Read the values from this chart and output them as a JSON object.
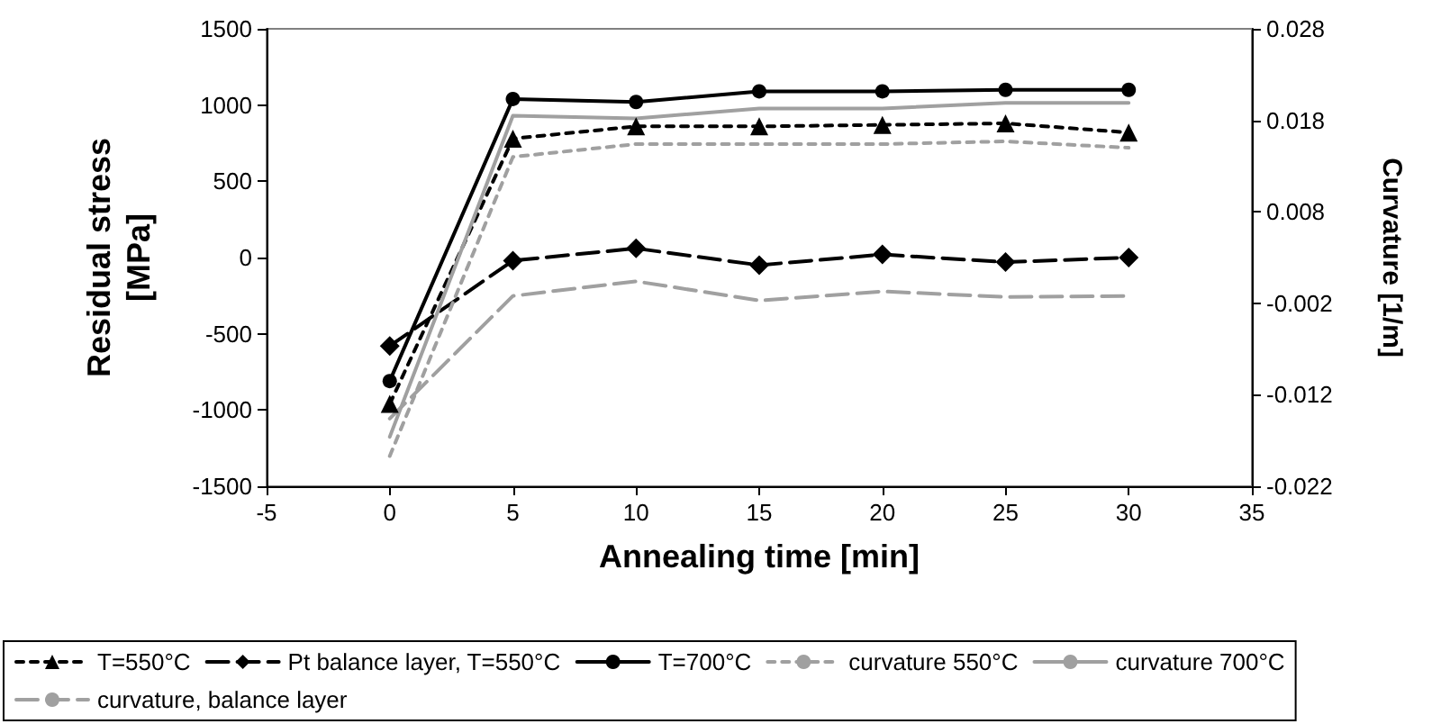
{
  "chart_data": {
    "type": "line",
    "xlabel": "Annealing time [min]",
    "ylabel": "Residual stress\n[MPa]",
    "y2label": "Curvature [1/m]",
    "x": [
      0,
      5,
      10,
      15,
      20,
      25,
      30
    ],
    "xlim": [
      -5,
      35
    ],
    "xticks": [
      -5,
      0,
      5,
      10,
      15,
      20,
      25,
      30,
      35
    ],
    "ylim": [
      -1500,
      1500
    ],
    "yticks": [
      -1500,
      -1000,
      -500,
      0,
      500,
      1000,
      1500
    ],
    "y2lim": [
      -0.022,
      0.028
    ],
    "y2ticks": [
      -0.022,
      -0.012,
      -0.002,
      0.008,
      0.018,
      0.028
    ],
    "grid": false,
    "legend": "bottom",
    "series": [
      {
        "name": "T=550°C",
        "color": "#000000",
        "marker": "triangle",
        "line_style": "dotted",
        "values": [
          -960,
          780,
          860,
          860,
          870,
          880,
          820
        ]
      },
      {
        "name": "Pt balance layer, T=550°C",
        "color": "#000000",
        "marker": "diamond",
        "line_style": "dashed",
        "values": [
          -580,
          -20,
          60,
          -50,
          20,
          -30,
          0
        ]
      },
      {
        "name": "T=700°C",
        "color": "#000000",
        "marker": "circle",
        "line_style": "solid",
        "values": [
          -810,
          1040,
          1020,
          1090,
          1090,
          1100,
          1100
        ]
      },
      {
        "name": "curvature 550°C",
        "color": "#a0a0a0",
        "marker": "none",
        "line_style": "dotted",
        "axis": "y2",
        "values": [
          -0.0187,
          0.014,
          0.0154,
          0.0154,
          0.0154,
          0.0157,
          0.015
        ]
      },
      {
        "name": "curvature 700°C",
        "color": "#a0a0a0",
        "marker": "none",
        "line_style": "solid",
        "axis": "y2",
        "values": [
          -0.0166,
          0.0185,
          0.0182,
          0.0193,
          0.0193,
          0.0199,
          0.0199
        ]
      },
      {
        "name": "curvature, balance layer",
        "color": "#a0a0a0",
        "marker": "none",
        "line_style": "dashed",
        "axis": "y2",
        "values": [
          -0.0146,
          -0.0012,
          0.0004,
          -0.0017,
          -0.0007,
          -0.0013,
          -0.0012
        ]
      }
    ]
  }
}
